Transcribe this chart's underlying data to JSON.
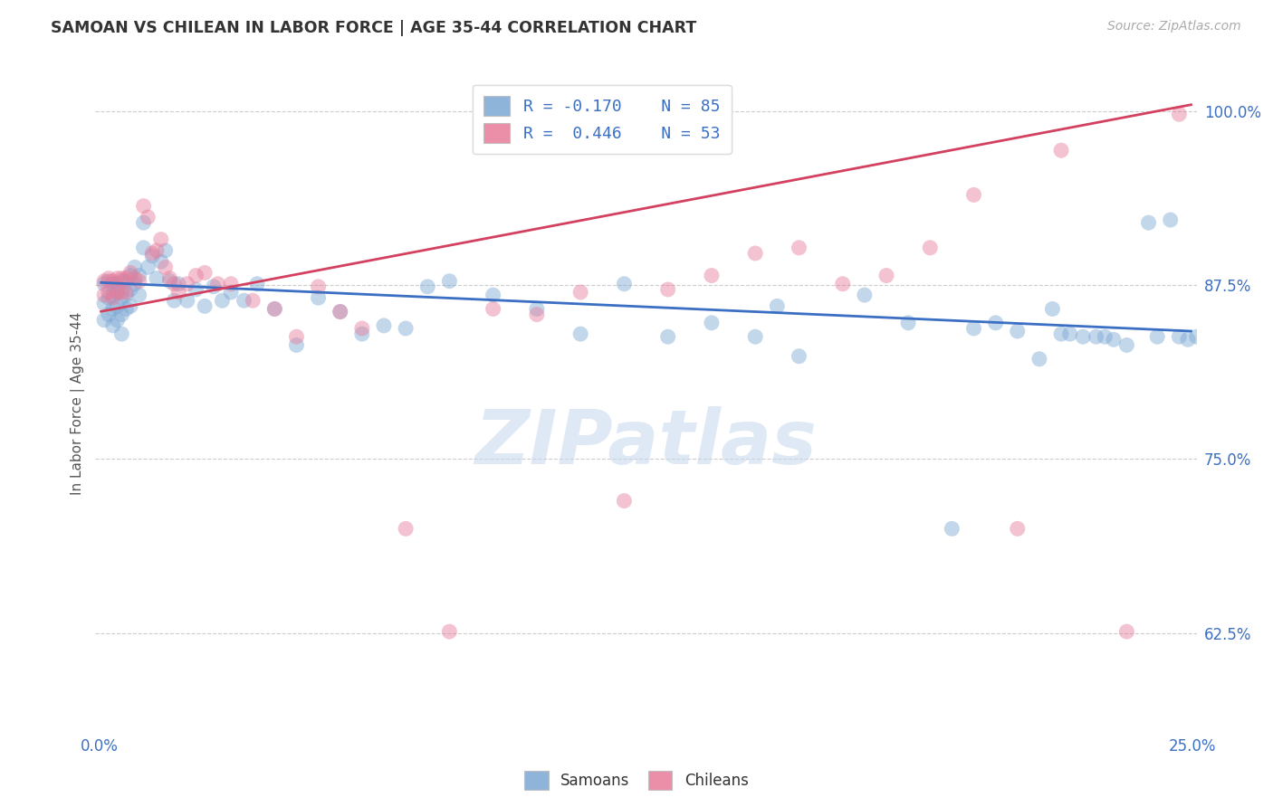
{
  "title": "SAMOAN VS CHILEAN IN LABOR FORCE | AGE 35-44 CORRELATION CHART",
  "source": "Source: ZipAtlas.com",
  "ylabel": "In Labor Force | Age 35-44",
  "xlim": [
    -0.001,
    0.251
  ],
  "ylim": [
    0.555,
    1.025
  ],
  "yticks": [
    0.625,
    0.75,
    0.875,
    1.0
  ],
  "ytick_labels": [
    "62.5%",
    "75.0%",
    "87.5%",
    "100.0%"
  ],
  "xticks": [
    0.0,
    0.05,
    0.1,
    0.15,
    0.2,
    0.25
  ],
  "xtick_labels": [
    "0.0%",
    "",
    "",
    "",
    "",
    "25.0%"
  ],
  "blue_color": "#7BA7D4",
  "pink_color": "#E87B9A",
  "blue_line_color": "#3B6FC4",
  "pink_line_color": "#D44060",
  "axis_tick_color": "#3B6FC4",
  "background_color": "#ffffff",
  "grid_color": "#cccccc",
  "watermark": "ZIPatlas",
  "blue_points_x": [
    0.001,
    0.001,
    0.001,
    0.002,
    0.002,
    0.002,
    0.003,
    0.003,
    0.003,
    0.003,
    0.004,
    0.004,
    0.004,
    0.004,
    0.005,
    0.005,
    0.005,
    0.005,
    0.006,
    0.006,
    0.006,
    0.007,
    0.007,
    0.007,
    0.008,
    0.008,
    0.009,
    0.009,
    0.01,
    0.01,
    0.011,
    0.012,
    0.013,
    0.014,
    0.015,
    0.016,
    0.017,
    0.018,
    0.02,
    0.022,
    0.024,
    0.026,
    0.028,
    0.03,
    0.033,
    0.036,
    0.04,
    0.045,
    0.05,
    0.055,
    0.06,
    0.065,
    0.07,
    0.075,
    0.08,
    0.09,
    0.1,
    0.11,
    0.12,
    0.13,
    0.14,
    0.15,
    0.155,
    0.16,
    0.175,
    0.185,
    0.195,
    0.2,
    0.205,
    0.21,
    0.215,
    0.218,
    0.22,
    0.222,
    0.225,
    0.228,
    0.23,
    0.232,
    0.235,
    0.24,
    0.242,
    0.245,
    0.247,
    0.249,
    0.251
  ],
  "blue_points_y": [
    0.876,
    0.862,
    0.85,
    0.878,
    0.866,
    0.854,
    0.876,
    0.868,
    0.858,
    0.846,
    0.876,
    0.87,
    0.86,
    0.85,
    0.878,
    0.866,
    0.854,
    0.84,
    0.878,
    0.868,
    0.858,
    0.882,
    0.872,
    0.86,
    0.888,
    0.876,
    0.882,
    0.868,
    0.92,
    0.902,
    0.888,
    0.896,
    0.88,
    0.892,
    0.9,
    0.878,
    0.864,
    0.876,
    0.864,
    0.872,
    0.86,
    0.874,
    0.864,
    0.87,
    0.864,
    0.876,
    0.858,
    0.832,
    0.866,
    0.856,
    0.84,
    0.846,
    0.844,
    0.874,
    0.878,
    0.868,
    0.858,
    0.84,
    0.876,
    0.838,
    0.848,
    0.838,
    0.86,
    0.824,
    0.868,
    0.848,
    0.7,
    0.844,
    0.848,
    0.842,
    0.822,
    0.858,
    0.84,
    0.84,
    0.838,
    0.838,
    0.838,
    0.836,
    0.832,
    0.92,
    0.838,
    0.922,
    0.838,
    0.836,
    0.838
  ],
  "pink_points_x": [
    0.001,
    0.001,
    0.002,
    0.002,
    0.003,
    0.003,
    0.004,
    0.004,
    0.005,
    0.005,
    0.006,
    0.006,
    0.007,
    0.008,
    0.009,
    0.01,
    0.011,
    0.012,
    0.013,
    0.014,
    0.015,
    0.016,
    0.017,
    0.018,
    0.02,
    0.022,
    0.024,
    0.027,
    0.03,
    0.035,
    0.04,
    0.045,
    0.05,
    0.055,
    0.06,
    0.07,
    0.08,
    0.09,
    0.1,
    0.11,
    0.12,
    0.13,
    0.14,
    0.15,
    0.16,
    0.17,
    0.18,
    0.19,
    0.2,
    0.21,
    0.22,
    0.235,
    0.247
  ],
  "pink_points_y": [
    0.878,
    0.868,
    0.88,
    0.87,
    0.878,
    0.866,
    0.88,
    0.87,
    0.88,
    0.87,
    0.88,
    0.87,
    0.884,
    0.88,
    0.878,
    0.932,
    0.924,
    0.898,
    0.9,
    0.908,
    0.888,
    0.88,
    0.876,
    0.87,
    0.876,
    0.882,
    0.884,
    0.876,
    0.876,
    0.864,
    0.858,
    0.838,
    0.874,
    0.856,
    0.844,
    0.7,
    0.626,
    0.858,
    0.854,
    0.87,
    0.72,
    0.872,
    0.882,
    0.898,
    0.902,
    0.876,
    0.882,
    0.902,
    0.94,
    0.7,
    0.972,
    0.626,
    0.998
  ],
  "blue_line_x": [
    0.0,
    0.25
  ],
  "blue_line_y": [
    0.877,
    0.842
  ],
  "pink_line_x": [
    0.0,
    0.25
  ],
  "pink_line_y": [
    0.856,
    1.005
  ]
}
